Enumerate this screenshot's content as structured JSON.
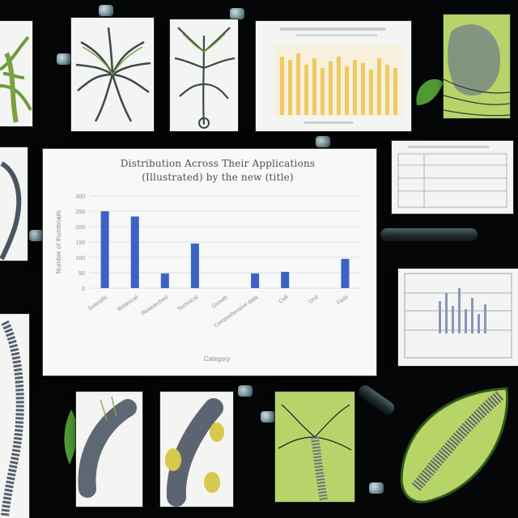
{
  "main_chart": {
    "title_line1": "Distribution Across Their Applications",
    "title_line2": "(Illustrated) by the new (title)",
    "xlabel": "Category",
    "ylabel": "Number of thumbnails",
    "y_ticks": [
      "300",
      "250",
      "200",
      "150",
      "100",
      "50",
      "0"
    ]
  },
  "chart_data": {
    "type": "bar",
    "title": "Distribution Across Their Applications (Illustrated) by the new (title)",
    "xlabel": "Category",
    "ylabel": "Number of thumbnails",
    "ylim": [
      0,
      300
    ],
    "grid": true,
    "categories": [
      "Scientific",
      "Botanical",
      "Researched",
      "Technical",
      "Growth",
      "Comprehensive data",
      "Cell",
      "Unit",
      "Field"
    ],
    "values": [
      250,
      233,
      48,
      145,
      0,
      48,
      53,
      0,
      95
    ],
    "color": "#3b63c4"
  },
  "colors": {
    "background": "#050607",
    "paper": "#f4f5f2",
    "leaf_green": "#b7d46a",
    "bar_blue": "#3b63c4",
    "yellow_bar": "#efc964"
  }
}
